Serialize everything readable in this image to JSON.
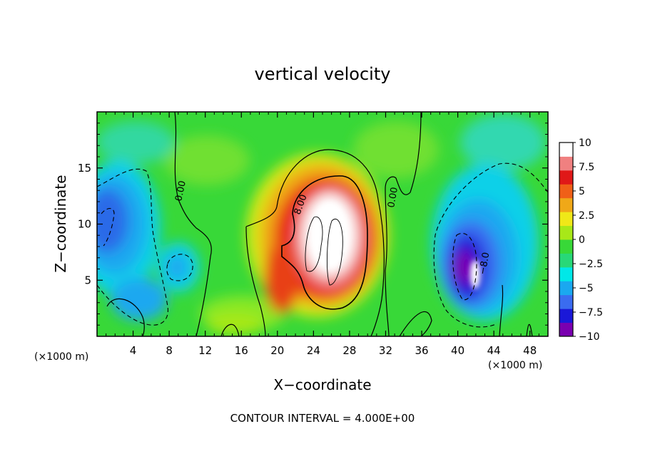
{
  "chart_data": {
    "type": "heatmap",
    "title": "vertical velocity",
    "xlabel": "X−coordinate",
    "ylabel": "Z−coordinate",
    "x_unit": "(×1000 m)",
    "y_unit": "(×1000 m)",
    "xlim": [
      0,
      50
    ],
    "ylim": [
      0,
      20
    ],
    "x_ticks": [
      4,
      8,
      12,
      16,
      20,
      24,
      28,
      32,
      36,
      40,
      44,
      48
    ],
    "y_ticks": [
      5,
      10,
      15
    ],
    "colorbar": {
      "range": [
        -10,
        10
      ],
      "ticks": [
        10,
        7.5,
        5,
        2.5,
        0,
        -2.5,
        -5,
        -7.5,
        -10
      ],
      "tick_labels": [
        "10",
        "7.5",
        "5",
        "2.5",
        "0",
        "−2.5",
        "−5",
        "−7.5",
        "−10"
      ],
      "colors": [
        "#7a00b0",
        "#1a18d8",
        "#3a6cf0",
        "#1aa8f0",
        "#00e8e8",
        "#28d878",
        "#38d838",
        "#a8e818",
        "#f0e818",
        "#f0a818",
        "#f06018",
        "#e01818",
        "#f08080",
        "#ffffff"
      ]
    },
    "contour_interval_text": "CONTOUR INTERVAL = 4.000E+00",
    "contour_labels": [
      "0.00",
      "8.00",
      "0.00",
      "−8.0"
    ],
    "features": [
      {
        "name": "updraft core",
        "x": 25,
        "z": 9,
        "value": 11
      },
      {
        "name": "updraft",
        "x": 24,
        "z": 8,
        "value": 8
      },
      {
        "name": "downdraft core",
        "x": 42,
        "z": 5.5,
        "value": -11
      },
      {
        "name": "downdraft",
        "x": 41.5,
        "z": 6,
        "value": -8
      },
      {
        "name": "left downdraft",
        "x": 1.5,
        "z": 10,
        "value": -7
      },
      {
        "name": "weak downdraft",
        "x": 9,
        "z": 6,
        "value": -3.5
      }
    ]
  }
}
